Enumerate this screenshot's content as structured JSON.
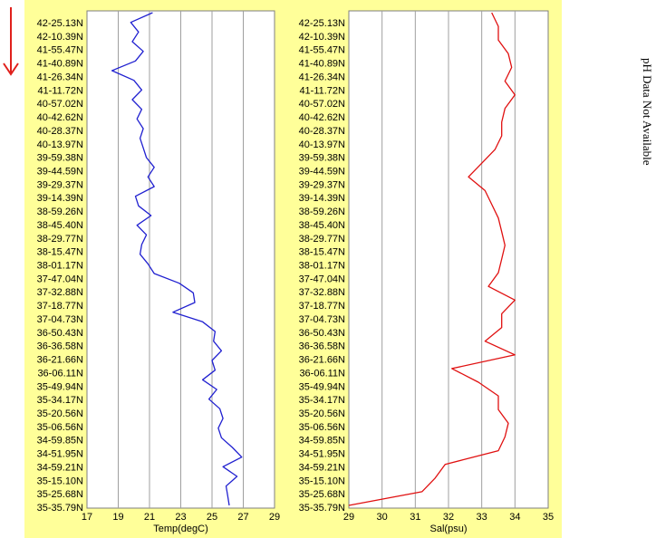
{
  "arrow_color": "#e0201c",
  "panel_color": "#ffff99",
  "side_note": "pH Data Not Available",
  "chart_data": [
    {
      "type": "line",
      "xlabel": "Temp(degC)",
      "xlim": [
        17,
        29
      ],
      "xticks": [
        17,
        19,
        21,
        23,
        25,
        27,
        29
      ],
      "y_tick_labels": [
        "42-25.13N",
        "42-10.39N",
        "41-55.47N",
        "41-40.89N",
        "41-26.34N",
        "41-11.72N",
        "40-57.02N",
        "40-42.62N",
        "40-28.37N",
        "40-13.97N",
        "39-59.38N",
        "39-44.59N",
        "39-29.37N",
        "39-14.39N",
        "38-59.26N",
        "38-45.40N",
        "38-29.77N",
        "38-15.47N",
        "38-01.17N",
        "37-47.04N",
        "37-32.88N",
        "37-18.77N",
        "37-04.73N",
        "36-50.43N",
        "36-36.58N",
        "36-21.66N",
        "36-06.11N",
        "35-49.94N",
        "35-34.17N",
        "35-20.56N",
        "35-06.56N",
        "34-59.85N",
        "34-51.95N",
        "34-59.21N",
        "35-15.10N",
        "35-25.68N",
        "35-35.79N"
      ],
      "grid": true,
      "series": [
        {
          "color": "#2020d0",
          "values": [
            21.2,
            19.8,
            20.3,
            19.9,
            20.6,
            20.1,
            18.6,
            20.0,
            20.5,
            19.9,
            20.5,
            20.2,
            20.6,
            20.4,
            20.6,
            20.8,
            21.3,
            20.9,
            21.3,
            20.1,
            20.3,
            21.1,
            20.2,
            20.8,
            20.5,
            20.4,
            20.9,
            21.3,
            22.9,
            23.8,
            23.9,
            22.5,
            24.4,
            25.2,
            25.1,
            25.6,
            25.0,
            25.2,
            24.4,
            25.3,
            24.8,
            25.5,
            25.7,
            25.4,
            25.6,
            26.3,
            26.9,
            25.7,
            26.6,
            25.9,
            26.0,
            26.1
          ]
        }
      ]
    },
    {
      "type": "line",
      "xlabel": "Sal(psu)",
      "xlim": [
        29,
        35
      ],
      "xticks": [
        29,
        30,
        31,
        32,
        33,
        34,
        35
      ],
      "y_tick_labels": [
        "42-25.13N",
        "42-10.39N",
        "41-55.47N",
        "41-40.89N",
        "41-26.34N",
        "41-11.72N",
        "40-57.02N",
        "40-42.62N",
        "40-28.37N",
        "40-13.97N",
        "39-59.38N",
        "39-44.59N",
        "39-29.37N",
        "39-14.39N",
        "38-59.26N",
        "38-45.40N",
        "38-29.77N",
        "38-15.47N",
        "38-01.17N",
        "37-47.04N",
        "37-32.88N",
        "37-18.77N",
        "37-04.73N",
        "36-50.43N",
        "36-36.58N",
        "36-21.66N",
        "36-06.11N",
        "35-49.94N",
        "35-34.17N",
        "35-20.56N",
        "35-06.56N",
        "34-59.85N",
        "34-51.95N",
        "34-59.21N",
        "35-15.10N",
        "35-25.68N",
        "35-35.79N"
      ],
      "grid": true,
      "series": [
        {
          "color": "#e01010",
          "values": [
            33.3,
            33.5,
            33.5,
            33.8,
            33.9,
            33.7,
            34.0,
            33.7,
            33.6,
            33.6,
            33.4,
            33.0,
            32.6,
            33.1,
            33.3,
            33.5,
            33.6,
            33.7,
            33.6,
            33.5,
            33.2,
            34.0,
            33.6,
            33.6,
            33.1,
            34.0,
            32.1,
            32.9,
            33.5,
            33.5,
            33.8,
            33.7,
            33.5,
            31.9,
            31.6,
            31.2,
            29.0
          ]
        }
      ]
    }
  ]
}
